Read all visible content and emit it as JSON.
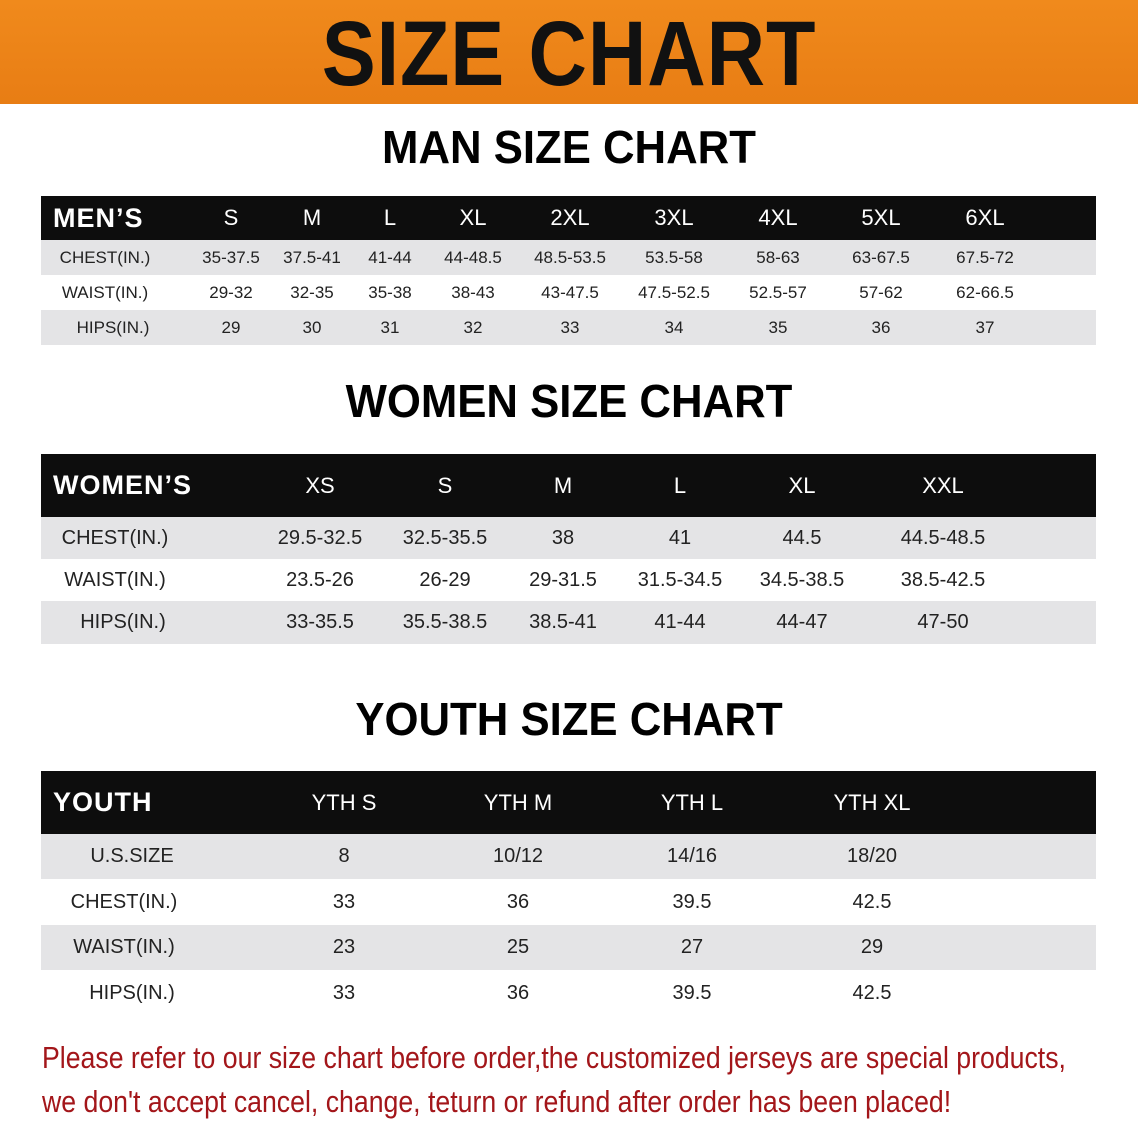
{
  "banner": {
    "title": "SIZE CHART",
    "color": "#ec8418"
  },
  "men": {
    "title": "MAN SIZE CHART",
    "header": [
      "MEN’S",
      "S",
      "M",
      "L",
      "XL",
      "2XL",
      "3XL",
      "4XL",
      "5XL",
      "6XL"
    ],
    "rows": [
      [
        "CHEST(IN.)",
        "35-37.5",
        "37.5-41",
        "41-44",
        "44-48.5",
        "48.5-53.5",
        "53.5-58",
        "58-63",
        "63-67.5",
        "67.5-72"
      ],
      [
        "WAIST(IN.)",
        "29-32",
        "32-35",
        "35-38",
        "38-43",
        "43-47.5",
        "47.5-52.5",
        "52.5-57",
        "57-62",
        "62-66.5"
      ],
      [
        "HIPS(IN.)",
        "29",
        "30",
        "31",
        "32",
        "33",
        "34",
        "35",
        "36",
        "37"
      ]
    ]
  },
  "women": {
    "title": "WOMEN SIZE CHART",
    "header": [
      "WOMEN’S",
      "XS",
      "S",
      "M",
      "L",
      "XL",
      "XXL"
    ],
    "rows": [
      [
        "CHEST(IN.)",
        "29.5-32.5",
        "32.5-35.5",
        "38",
        "41",
        "44.5",
        "44.5-48.5"
      ],
      [
        "WAIST(IN.)",
        "23.5-26",
        "26-29",
        "29-31.5",
        "31.5-34.5",
        "34.5-38.5",
        "38.5-42.5"
      ],
      [
        "HIPS(IN.)",
        "33-35.5",
        "35.5-38.5",
        "38.5-41",
        "41-44",
        "44-47",
        "47-50"
      ]
    ]
  },
  "youth": {
    "title": "YOUTH SIZE CHART",
    "header": [
      "YOUTH",
      "YTH S",
      "YTH M",
      "YTH L",
      "YTH XL"
    ],
    "rows": [
      [
        "U.S.SIZE",
        "8",
        "10/12",
        "14/16",
        "18/20"
      ],
      [
        "CHEST(IN.)",
        "33",
        "36",
        "39.5",
        "42.5"
      ],
      [
        "WAIST(IN.)",
        "23",
        "25",
        "27",
        "29"
      ],
      [
        "HIPS(IN.)",
        "33",
        "36",
        "39.5",
        "42.5"
      ]
    ]
  },
  "note": {
    "line1": "Please refer to our size chart before order,the customized jerseys are special products,",
    "line2": "we don't accept cancel, change, teturn or refund after order has been placed!",
    "color": "#a3161a"
  }
}
